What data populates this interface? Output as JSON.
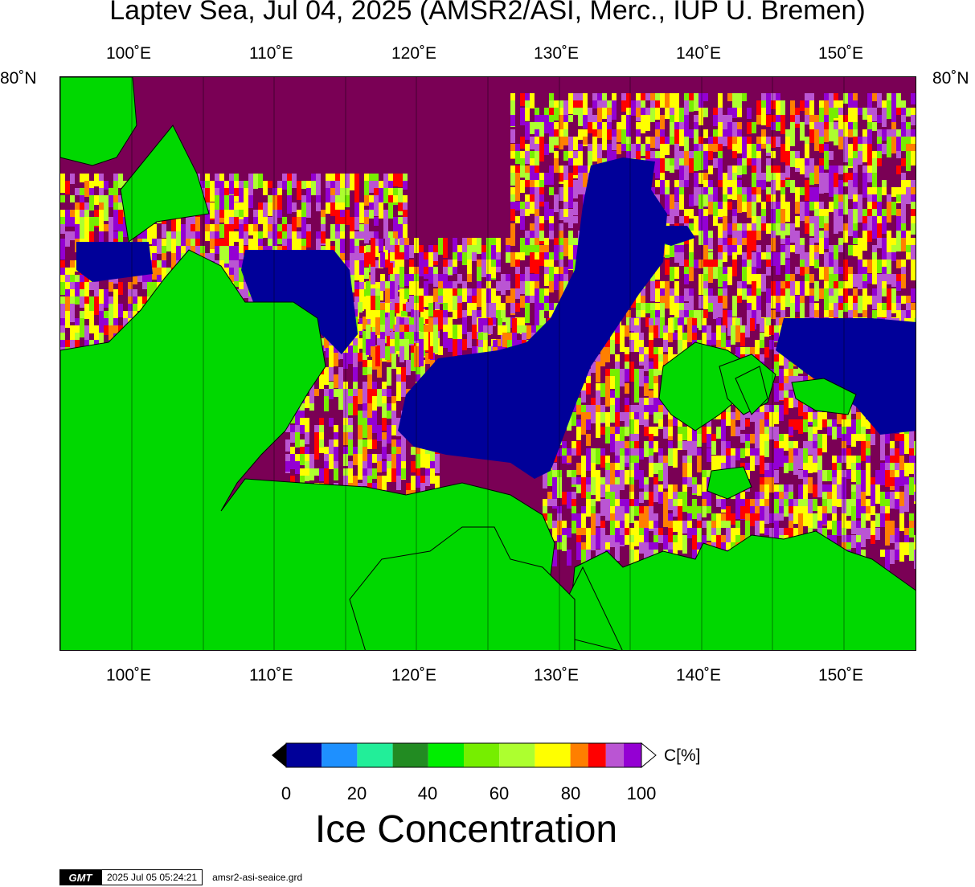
{
  "title": "Laptev Sea, Jul 04, 2025 (AMSR2/ASI, Merc., IUP U. Bremen)",
  "map": {
    "lat_label_left": "80˚N",
    "lat_label_right": "80˚N",
    "lon_labels": [
      "100˚E",
      "110˚E",
      "120˚E",
      "130˚E",
      "140˚E",
      "150˚E"
    ],
    "colors": {
      "land": "#00d800",
      "open_water": "#000099",
      "consolidated_ice": "#7a0055"
    }
  },
  "colorbar": {
    "colors": [
      "#000099",
      "#1e90ff",
      "#22ee99",
      "#228b22",
      "#00ee00",
      "#76ee00",
      "#adff2f",
      "#ffff00",
      "#ff7f00",
      "#ff0000",
      "#ba55d3",
      "#9400d3"
    ],
    "unit": "C[%]",
    "ticks": [
      "0",
      "20",
      "40",
      "60",
      "80",
      "100"
    ],
    "title": "Ice Concentration"
  },
  "footer": {
    "logo": "GMT",
    "timestamp": "2025 Jul 05 05:24:21",
    "filename": "amsr2-asi-seaice.grd"
  }
}
